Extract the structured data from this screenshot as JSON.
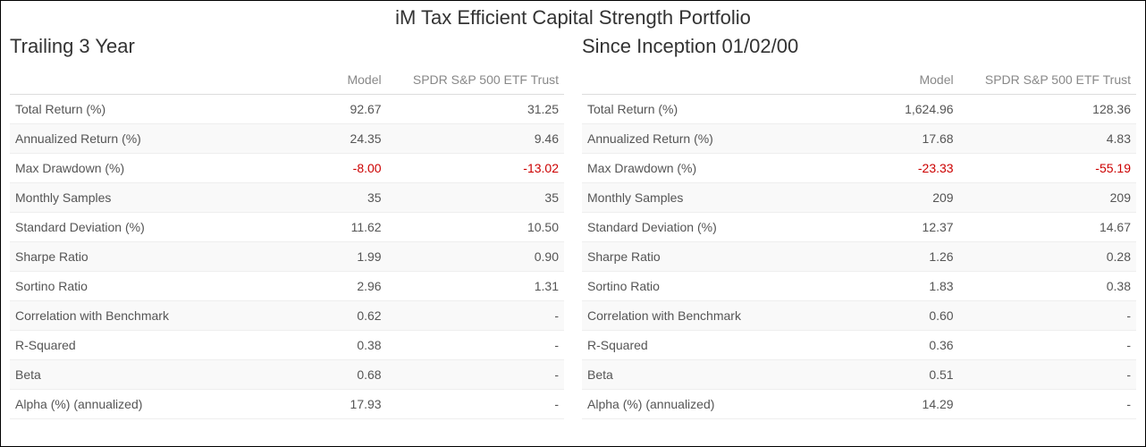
{
  "title": "iM Tax Efficient Capital Strength Portfolio",
  "headers": {
    "metric": "",
    "model": "Model",
    "benchmark": "SPDR S&P 500 ETF Trust"
  },
  "metrics": [
    "Total Return (%)",
    "Annualized Return (%)",
    "Max Drawdown (%)",
    "Monthly Samples",
    "Standard Deviation (%)",
    "Sharpe Ratio",
    "Sortino Ratio",
    "Correlation with Benchmark",
    "R-Squared",
    "Beta",
    "Alpha (%) (annualized)"
  ],
  "panels": [
    {
      "title": "Trailing 3 Year",
      "rows": [
        {
          "model": "92.67",
          "benchmark": "31.25"
        },
        {
          "model": "24.35",
          "benchmark": "9.46"
        },
        {
          "model": "-8.00",
          "benchmark": "-13.02",
          "neg": true
        },
        {
          "model": "35",
          "benchmark": "35"
        },
        {
          "model": "11.62",
          "benchmark": "10.50"
        },
        {
          "model": "1.99",
          "benchmark": "0.90"
        },
        {
          "model": "2.96",
          "benchmark": "1.31"
        },
        {
          "model": "0.62",
          "benchmark": "-"
        },
        {
          "model": "0.38",
          "benchmark": "-"
        },
        {
          "model": "0.68",
          "benchmark": "-"
        },
        {
          "model": "17.93",
          "benchmark": "-"
        }
      ]
    },
    {
      "title": "Since Inception 01/02/00",
      "rows": [
        {
          "model": "1,624.96",
          "benchmark": "128.36"
        },
        {
          "model": "17.68",
          "benchmark": "4.83"
        },
        {
          "model": "-23.33",
          "benchmark": "-55.19",
          "neg": true
        },
        {
          "model": "209",
          "benchmark": "209"
        },
        {
          "model": "12.37",
          "benchmark": "14.67"
        },
        {
          "model": "1.26",
          "benchmark": "0.28"
        },
        {
          "model": "1.83",
          "benchmark": "0.38"
        },
        {
          "model": "0.60",
          "benchmark": "-"
        },
        {
          "model": "0.36",
          "benchmark": "-"
        },
        {
          "model": "0.51",
          "benchmark": "-"
        },
        {
          "model": "14.29",
          "benchmark": "-"
        }
      ]
    }
  ],
  "style": {
    "negative_color": "#cc0000",
    "text_color": "#555555",
    "header_color": "#888888",
    "row_alt_bg": "#f9f9f9",
    "border_color": "#eeeeee"
  }
}
